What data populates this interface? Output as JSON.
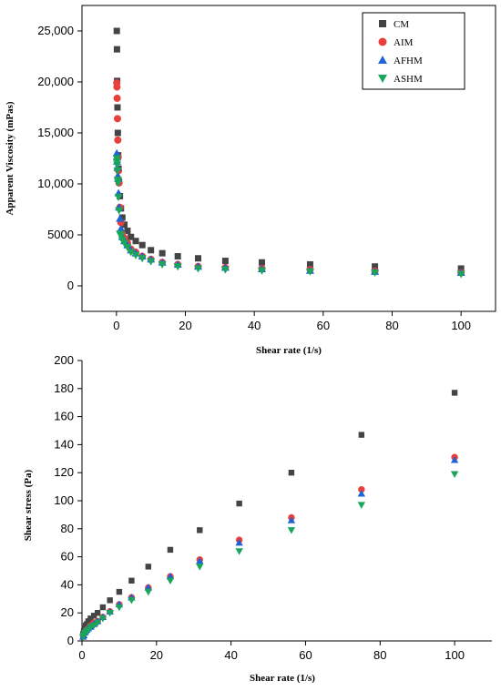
{
  "colors": {
    "CM": "#444444",
    "AIM": "#e8403a",
    "AFHM": "#1f63d6",
    "ASHM": "#1aa65a"
  },
  "markers": {
    "CM": "square",
    "AIM": "circle",
    "AFHM": "triangle-up",
    "ASHM": "triangle-down"
  },
  "chart_data": [
    {
      "type": "scatter",
      "title": "",
      "xlabel": "",
      "ylabel": "Apparent Viscosity (mPas)",
      "xlim": [
        -10,
        110
      ],
      "ylim": [
        -2500,
        27500
      ],
      "x_ticks": [
        0,
        20,
        40,
        60,
        80,
        100
      ],
      "x_tick_labels": [
        "0",
        "20",
        "40",
        "60",
        "80",
        "100"
      ],
      "y_ticks": [
        0,
        5000,
        10000,
        15000,
        20000,
        25000
      ],
      "y_tick_labels": [
        "0",
        "5000",
        "10,000",
        "15,000",
        "20,000",
        "25,000"
      ],
      "grid": false,
      "legend_position": "top-right",
      "series": [
        {
          "name": "CM",
          "x": [
            0.1,
            0.15,
            0.2,
            0.3,
            0.4,
            0.5,
            0.6,
            0.75,
            1.0,
            1.3,
            1.7,
            2.3,
            3.2,
            4.2,
            5.6,
            7.5,
            10,
            13.3,
            17.8,
            23.7,
            31.6,
            42.2,
            56.2,
            75,
            100
          ],
          "y": [
            25000,
            23200,
            20100,
            17500,
            15000,
            12800,
            11500,
            10200,
            8800,
            7600,
            6700,
            6000,
            5400,
            4800,
            4400,
            4000,
            3500,
            3200,
            2900,
            2700,
            2450,
            2300,
            2100,
            1900,
            1700
          ]
        },
        {
          "name": "AIM",
          "x": [
            0.1,
            0.15,
            0.2,
            0.3,
            0.4,
            0.5,
            0.6,
            0.75,
            1.0,
            1.3,
            1.7,
            2.3,
            3.2,
            4.2,
            5.6,
            7.5,
            10,
            13.3,
            17.8,
            23.7,
            31.6,
            42.2,
            56.2,
            75,
            100
          ],
          "y": [
            19900,
            19500,
            18400,
            16400,
            14300,
            12600,
            11300,
            10100,
            7700,
            6200,
            5100,
            4700,
            4200,
            3600,
            3300,
            2900,
            2600,
            2300,
            2100,
            1900,
            1800,
            1700,
            1600,
            1450,
            1300
          ]
        },
        {
          "name": "AFHM",
          "x": [
            0.1,
            0.15,
            0.2,
            0.3,
            0.4,
            0.5,
            0.6,
            0.75,
            1.0,
            1.3,
            1.7,
            2.3,
            3.2,
            4.2,
            5.6,
            7.5,
            10,
            13.3,
            17.8,
            23.7,
            31.6,
            42.2,
            56.2,
            75,
            100
          ],
          "y": [
            13000,
            12600,
            12200,
            11600,
            10800,
            10500,
            9100,
            7700,
            6600,
            5600,
            4800,
            4400,
            4000,
            3500,
            3200,
            2900,
            2600,
            2300,
            2100,
            1900,
            1800,
            1650,
            1500,
            1400,
            1300
          ]
        },
        {
          "name": "ASHM",
          "x": [
            0.1,
            0.15,
            0.2,
            0.3,
            0.4,
            0.5,
            0.6,
            0.75,
            1.0,
            1.3,
            1.7,
            2.3,
            3.2,
            4.2,
            5.6,
            7.5,
            10,
            13.3,
            17.8,
            23.7,
            31.6,
            42.2,
            56.2,
            75,
            100
          ],
          "y": [
            12500,
            12200,
            11900,
            11300,
            10400,
            10100,
            8700,
            7400,
            5100,
            4900,
            4500,
            4200,
            3800,
            3300,
            3000,
            2700,
            2400,
            2100,
            1900,
            1700,
            1600,
            1500,
            1400,
            1300,
            1150
          ]
        }
      ]
    },
    {
      "type": "scatter",
      "title": "",
      "xlabel": "Shear rate (1/s)",
      "ylabel": "Shear stress (Pa)",
      "xlim": [
        0,
        110
      ],
      "ylim": [
        0,
        200
      ],
      "x_ticks": [
        0,
        20,
        40,
        60,
        80,
        100
      ],
      "x_tick_labels": [
        "0",
        "20",
        "40",
        "60",
        "80",
        "100"
      ],
      "y_ticks": [
        0,
        20,
        40,
        60,
        80,
        100,
        120,
        140,
        160,
        180,
        200
      ],
      "y_tick_labels": [
        "0",
        "20",
        "40",
        "60",
        "80",
        "100",
        "120",
        "140",
        "160",
        "180",
        "200"
      ],
      "grid": false,
      "series": [
        {
          "name": "CM",
          "x": [
            0.3,
            0.5,
            0.75,
            1.0,
            1.3,
            1.7,
            2.3,
            3.2,
            4.2,
            5.6,
            7.5,
            10,
            13.3,
            17.8,
            23.7,
            31.6,
            42.2,
            56.2,
            75,
            100
          ],
          "y": [
            5,
            7,
            9,
            11,
            12,
            14,
            16,
            18,
            20,
            24,
            29,
            35,
            43,
            53,
            65,
            79,
            98,
            120,
            147,
            177
          ]
        },
        {
          "name": "AIM",
          "x": [
            0.3,
            0.5,
            0.75,
            1.0,
            1.3,
            1.7,
            2.3,
            3.2,
            4.2,
            5.6,
            7.5,
            10,
            13.3,
            17.8,
            23.7,
            31.6,
            42.2,
            56.2,
            75,
            100
          ],
          "y": [
            4,
            5,
            6,
            7,
            8,
            9,
            11,
            13,
            14,
            17,
            21,
            26,
            31,
            38,
            46,
            58,
            72,
            88,
            108,
            131
          ]
        },
        {
          "name": "AFHM",
          "x": [
            0.3,
            0.5,
            0.75,
            1.0,
            1.3,
            1.7,
            2.3,
            3.2,
            4.2,
            5.6,
            7.5,
            10,
            13.3,
            17.8,
            23.7,
            31.6,
            42.2,
            56.2,
            75,
            100
          ],
          "y": [
            3,
            4,
            6,
            7,
            8,
            9,
            10,
            12,
            14,
            17,
            21,
            26,
            31,
            38,
            46,
            57,
            70,
            86,
            105,
            129
          ]
        },
        {
          "name": "ASHM",
          "x": [
            0.3,
            0.5,
            0.75,
            1.0,
            1.3,
            1.7,
            2.3,
            3.2,
            4.2,
            5.6,
            7.5,
            10,
            13.3,
            17.8,
            23.7,
            31.6,
            42.2,
            56.2,
            75,
            100
          ],
          "y": [
            3,
            4,
            5,
            6,
            7,
            8,
            10,
            11,
            13,
            16,
            20,
            24,
            29,
            35,
            43,
            53,
            64,
            79,
            97,
            119
          ]
        }
      ]
    }
  ]
}
